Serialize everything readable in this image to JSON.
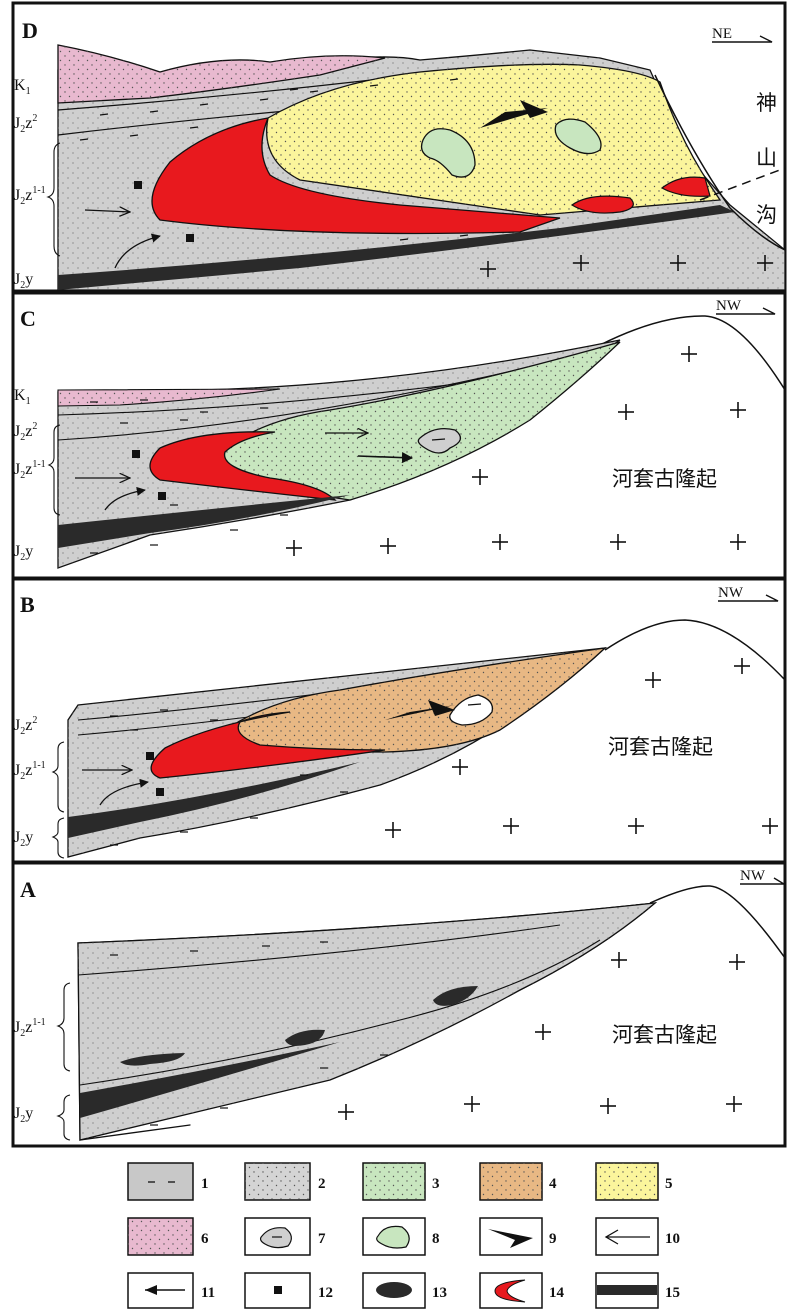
{
  "panels": {
    "D": {
      "letter": "D",
      "direction": "NE",
      "layers": [
        "K",
        "J",
        "J",
        "J"
      ],
      "layer_subs": [
        "1",
        "2",
        "2",
        "2"
      ],
      "layer_tails": [
        "",
        "z",
        "z",
        "y"
      ],
      "layer_sups": [
        "",
        "2",
        "1-1",
        ""
      ],
      "place_name_chars": [
        "神",
        "山",
        "沟"
      ]
    },
    "C": {
      "letter": "C",
      "direction": "NW",
      "layers": [
        "K",
        "J",
        "J",
        "J"
      ],
      "layer_subs": [
        "1",
        "2",
        "2",
        "2"
      ],
      "layer_tails": [
        "",
        "z",
        "z",
        "y"
      ],
      "layer_sups": [
        "",
        "2",
        "1-1",
        ""
      ],
      "uplift": "河套古隆起"
    },
    "B": {
      "letter": "B",
      "direction": "NW",
      "layers": [
        "J",
        "J",
        "J"
      ],
      "layer_subs": [
        "2",
        "2",
        "2"
      ],
      "layer_tails": [
        "z",
        "z",
        "y"
      ],
      "layer_sups": [
        "2",
        "1-1",
        ""
      ],
      "uplift": "河套古隆起"
    },
    "A": {
      "letter": "A",
      "direction": "NW",
      "layers": [
        "J",
        "J"
      ],
      "layer_subs": [
        "2",
        "2"
      ],
      "layer_tails": [
        "z",
        "y"
      ],
      "layer_sups": [
        "1-1",
        ""
      ],
      "uplift": "河套古隆起"
    }
  },
  "legend": {
    "items": [
      "1",
      "2",
      "3",
      "4",
      "5",
      "6",
      "7",
      "8",
      "9",
      "10",
      "11",
      "12",
      "13",
      "14",
      "15"
    ]
  },
  "colors": {
    "mudstone_gray": "#c8c8c8",
    "sandstone_gray": "#d4d4d4",
    "green_oxidized": "#c8e6bf",
    "orange_oxidized": "#e8b884",
    "yellow_oxidized": "#fbf59c",
    "pink": "#e8b9cf",
    "red_ore": "#e8191e",
    "coal_black": "#2a2a2a",
    "frame": "#111111"
  },
  "icons": [
    "fault-dashed-line",
    "basement-cross-icon",
    "flow-arrow-icon",
    "paleo-flow-arrow-icon",
    "pyrite-square-icon"
  ]
}
